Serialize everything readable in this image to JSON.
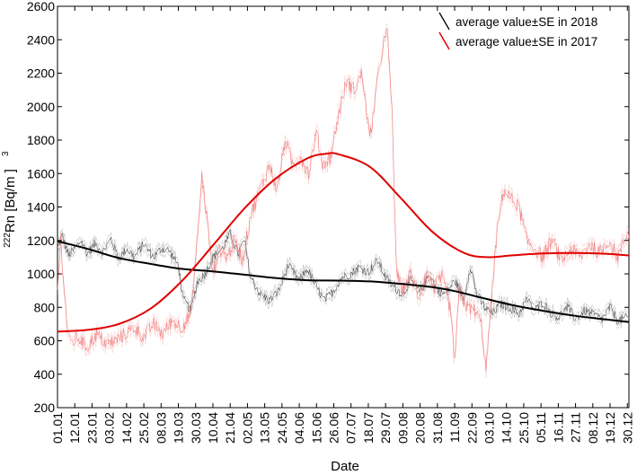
{
  "chart_data": {
    "type": "line",
    "title": "",
    "xlabel": "Date",
    "ylabel": "Rn [Bq/m ]",
    "ylabel_sup_prefix": "222",
    "ylabel_sup_unit": "3",
    "ylim": [
      200,
      2600
    ],
    "yticks": [
      200,
      400,
      600,
      800,
      1000,
      1200,
      1400,
      1600,
      1800,
      2000,
      2200,
      2400,
      2600
    ],
    "xlim_day": [
      1,
      365
    ],
    "xticks": [
      {
        "label": "01.01",
        "day": 1
      },
      {
        "label": "12.01",
        "day": 12
      },
      {
        "label": "23.01",
        "day": 23
      },
      {
        "label": "03.02",
        "day": 34
      },
      {
        "label": "14.02",
        "day": 45
      },
      {
        "label": "25.02",
        "day": 56
      },
      {
        "label": "08.03",
        "day": 67
      },
      {
        "label": "19.03",
        "day": 78
      },
      {
        "label": "30.03",
        "day": 89
      },
      {
        "label": "10.04",
        "day": 100
      },
      {
        "label": "21.04",
        "day": 111
      },
      {
        "label": "02.05",
        "day": 122
      },
      {
        "label": "13.05",
        "day": 133
      },
      {
        "label": "24.05",
        "day": 144
      },
      {
        "label": "04.06",
        "day": 155
      },
      {
        "label": "15.06",
        "day": 166
      },
      {
        "label": "26.06",
        "day": 177
      },
      {
        "label": "07.07",
        "day": 188
      },
      {
        "label": "18.07",
        "day": 199
      },
      {
        "label": "29.07",
        "day": 210
      },
      {
        "label": "09.08",
        "day": 221
      },
      {
        "label": "20.08",
        "day": 232
      },
      {
        "label": "31.08",
        "day": 243
      },
      {
        "label": "11.09",
        "day": 254
      },
      {
        "label": "22.09",
        "day": 265
      },
      {
        "label": "03.10",
        "day": 276
      },
      {
        "label": "14.10",
        "day": 287
      },
      {
        "label": "25.10",
        "day": 298
      },
      {
        "label": "05.11",
        "day": 309
      },
      {
        "label": "16.11",
        "day": 320
      },
      {
        "label": "27.11",
        "day": 331
      },
      {
        "label": "08.12",
        "day": 342
      },
      {
        "label": "19.12",
        "day": 353
      },
      {
        "label": "30.12",
        "day": 364
      }
    ],
    "grid": false,
    "legend_position": "top-right",
    "series": [
      {
        "name": "average value±SE in 2018",
        "color": "#000000",
        "raw_points": [
          {
            "day": 1,
            "value": 1150
          },
          {
            "day": 4,
            "value": 1230
          },
          {
            "day": 8,
            "value": 1110
          },
          {
            "day": 12,
            "value": 1150
          },
          {
            "day": 16,
            "value": 1200
          },
          {
            "day": 20,
            "value": 1120
          },
          {
            "day": 25,
            "value": 1180
          },
          {
            "day": 30,
            "value": 1130
          },
          {
            "day": 35,
            "value": 1210
          },
          {
            "day": 40,
            "value": 1090
          },
          {
            "day": 45,
            "value": 1150
          },
          {
            "day": 50,
            "value": 1100
          },
          {
            "day": 56,
            "value": 1180
          },
          {
            "day": 62,
            "value": 1100
          },
          {
            "day": 67,
            "value": 1150
          },
          {
            "day": 72,
            "value": 1140
          },
          {
            "day": 78,
            "value": 1050
          },
          {
            "day": 81,
            "value": 850
          },
          {
            "day": 86,
            "value": 780
          },
          {
            "day": 90,
            "value": 950
          },
          {
            "day": 95,
            "value": 1000
          },
          {
            "day": 100,
            "value": 1100
          },
          {
            "day": 106,
            "value": 1150
          },
          {
            "day": 111,
            "value": 1240
          },
          {
            "day": 116,
            "value": 1120
          },
          {
            "day": 120,
            "value": 1200
          },
          {
            "day": 124,
            "value": 980
          },
          {
            "day": 130,
            "value": 880
          },
          {
            "day": 136,
            "value": 840
          },
          {
            "day": 142,
            "value": 900
          },
          {
            "day": 148,
            "value": 1050
          },
          {
            "day": 155,
            "value": 960
          },
          {
            "day": 160,
            "value": 1030
          },
          {
            "day": 166,
            "value": 920
          },
          {
            "day": 171,
            "value": 840
          },
          {
            "day": 177,
            "value": 900
          },
          {
            "day": 182,
            "value": 980
          },
          {
            "day": 188,
            "value": 1000
          },
          {
            "day": 193,
            "value": 1040
          },
          {
            "day": 199,
            "value": 1010
          },
          {
            "day": 205,
            "value": 1080
          },
          {
            "day": 210,
            "value": 980
          },
          {
            "day": 215,
            "value": 920
          },
          {
            "day": 221,
            "value": 880
          },
          {
            "day": 226,
            "value": 960
          },
          {
            "day": 232,
            "value": 890
          },
          {
            "day": 238,
            "value": 1000
          },
          {
            "day": 243,
            "value": 900
          },
          {
            "day": 248,
            "value": 880
          },
          {
            "day": 254,
            "value": 960
          },
          {
            "day": 260,
            "value": 850
          },
          {
            "day": 264,
            "value": 1050
          },
          {
            "day": 268,
            "value": 880
          },
          {
            "day": 273,
            "value": 800
          },
          {
            "day": 278,
            "value": 760
          },
          {
            "day": 283,
            "value": 820
          },
          {
            "day": 289,
            "value": 800
          },
          {
            "day": 295,
            "value": 760
          },
          {
            "day": 300,
            "value": 850
          },
          {
            "day": 305,
            "value": 780
          },
          {
            "day": 310,
            "value": 830
          },
          {
            "day": 316,
            "value": 760
          },
          {
            "day": 320,
            "value": 740
          },
          {
            "day": 326,
            "value": 800
          },
          {
            "day": 331,
            "value": 730
          },
          {
            "day": 337,
            "value": 780
          },
          {
            "day": 342,
            "value": 760
          },
          {
            "day": 348,
            "value": 730
          },
          {
            "day": 353,
            "value": 800
          },
          {
            "day": 358,
            "value": 720
          },
          {
            "day": 364,
            "value": 740
          }
        ],
        "smooth_points": [
          {
            "day": 1,
            "value": 1195
          },
          {
            "day": 20,
            "value": 1150
          },
          {
            "day": 40,
            "value": 1095
          },
          {
            "day": 60,
            "value": 1060
          },
          {
            "day": 80,
            "value": 1030
          },
          {
            "day": 100,
            "value": 1015
          },
          {
            "day": 120,
            "value": 995
          },
          {
            "day": 140,
            "value": 975
          },
          {
            "day": 160,
            "value": 962
          },
          {
            "day": 180,
            "value": 960
          },
          {
            "day": 200,
            "value": 955
          },
          {
            "day": 220,
            "value": 940
          },
          {
            "day": 240,
            "value": 920
          },
          {
            "day": 255,
            "value": 895
          },
          {
            "day": 270,
            "value": 860
          },
          {
            "day": 290,
            "value": 815
          },
          {
            "day": 310,
            "value": 780
          },
          {
            "day": 330,
            "value": 750
          },
          {
            "day": 350,
            "value": 728
          },
          {
            "day": 365,
            "value": 712
          }
        ]
      },
      {
        "name": "average value±SE in 2017",
        "color": "#e00000",
        "raw_points": [
          {
            "day": 1,
            "value": 900
          },
          {
            "day": 3,
            "value": 1200
          },
          {
            "day": 5,
            "value": 950
          },
          {
            "day": 7,
            "value": 700
          },
          {
            "day": 9,
            "value": 580
          },
          {
            "day": 14,
            "value": 620
          },
          {
            "day": 20,
            "value": 560
          },
          {
            "day": 26,
            "value": 640
          },
          {
            "day": 32,
            "value": 580
          },
          {
            "day": 38,
            "value": 600
          },
          {
            "day": 44,
            "value": 640
          },
          {
            "day": 50,
            "value": 680
          },
          {
            "day": 56,
            "value": 620
          },
          {
            "day": 62,
            "value": 700
          },
          {
            "day": 68,
            "value": 640
          },
          {
            "day": 74,
            "value": 720
          },
          {
            "day": 80,
            "value": 680
          },
          {
            "day": 86,
            "value": 760
          },
          {
            "day": 90,
            "value": 1200
          },
          {
            "day": 93,
            "value": 1580
          },
          {
            "day": 96,
            "value": 1350
          },
          {
            "day": 100,
            "value": 1000
          },
          {
            "day": 104,
            "value": 1150
          },
          {
            "day": 109,
            "value": 1100
          },
          {
            "day": 114,
            "value": 1200
          },
          {
            "day": 119,
            "value": 1080
          },
          {
            "day": 124,
            "value": 1350
          },
          {
            "day": 130,
            "value": 1500
          },
          {
            "day": 136,
            "value": 1650
          },
          {
            "day": 141,
            "value": 1500
          },
          {
            "day": 146,
            "value": 1800
          },
          {
            "day": 151,
            "value": 1650
          },
          {
            "day": 156,
            "value": 1700
          },
          {
            "day": 161,
            "value": 1600
          },
          {
            "day": 166,
            "value": 1850
          },
          {
            "day": 170,
            "value": 1650
          },
          {
            "day": 175,
            "value": 1700
          },
          {
            "day": 180,
            "value": 1950
          },
          {
            "day": 185,
            "value": 2150
          },
          {
            "day": 190,
            "value": 2100
          },
          {
            "day": 195,
            "value": 2200
          },
          {
            "day": 200,
            "value": 1800
          },
          {
            "day": 204,
            "value": 2100
          },
          {
            "day": 208,
            "value": 2350
          },
          {
            "day": 211,
            "value": 2450
          },
          {
            "day": 214,
            "value": 2000
          },
          {
            "day": 217,
            "value": 1000
          },
          {
            "day": 221,
            "value": 900
          },
          {
            "day": 226,
            "value": 1000
          },
          {
            "day": 231,
            "value": 860
          },
          {
            "day": 236,
            "value": 1000
          },
          {
            "day": 241,
            "value": 920
          },
          {
            "day": 246,
            "value": 980
          },
          {
            "day": 251,
            "value": 800
          },
          {
            "day": 254,
            "value": 480
          },
          {
            "day": 257,
            "value": 900
          },
          {
            "day": 262,
            "value": 800
          },
          {
            "day": 267,
            "value": 780
          },
          {
            "day": 271,
            "value": 700
          },
          {
            "day": 274,
            "value": 420
          },
          {
            "day": 277,
            "value": 800
          },
          {
            "day": 281,
            "value": 1250
          },
          {
            "day": 285,
            "value": 1500
          },
          {
            "day": 290,
            "value": 1450
          },
          {
            "day": 295,
            "value": 1400
          },
          {
            "day": 300,
            "value": 1200
          },
          {
            "day": 305,
            "value": 1150
          },
          {
            "day": 310,
            "value": 1100
          },
          {
            "day": 316,
            "value": 1200
          },
          {
            "day": 322,
            "value": 1080
          },
          {
            "day": 328,
            "value": 1150
          },
          {
            "day": 334,
            "value": 1100
          },
          {
            "day": 340,
            "value": 1180
          },
          {
            "day": 346,
            "value": 1120
          },
          {
            "day": 352,
            "value": 1200
          },
          {
            "day": 358,
            "value": 1100
          },
          {
            "day": 364,
            "value": 1250
          }
        ],
        "smooth_points": [
          {
            "day": 1,
            "value": 655
          },
          {
            "day": 20,
            "value": 665
          },
          {
            "day": 40,
            "value": 700
          },
          {
            "day": 60,
            "value": 790
          },
          {
            "day": 80,
            "value": 955
          },
          {
            "day": 100,
            "value": 1170
          },
          {
            "day": 120,
            "value": 1390
          },
          {
            "day": 140,
            "value": 1570
          },
          {
            "day": 160,
            "value": 1690
          },
          {
            "day": 172,
            "value": 1718
          },
          {
            "day": 180,
            "value": 1715
          },
          {
            "day": 200,
            "value": 1640
          },
          {
            "day": 220,
            "value": 1450
          },
          {
            "day": 240,
            "value": 1250
          },
          {
            "day": 260,
            "value": 1125
          },
          {
            "day": 275,
            "value": 1100
          },
          {
            "day": 290,
            "value": 1110
          },
          {
            "day": 310,
            "value": 1122
          },
          {
            "day": 330,
            "value": 1125
          },
          {
            "day": 350,
            "value": 1120
          },
          {
            "day": 365,
            "value": 1110
          }
        ]
      }
    ]
  }
}
